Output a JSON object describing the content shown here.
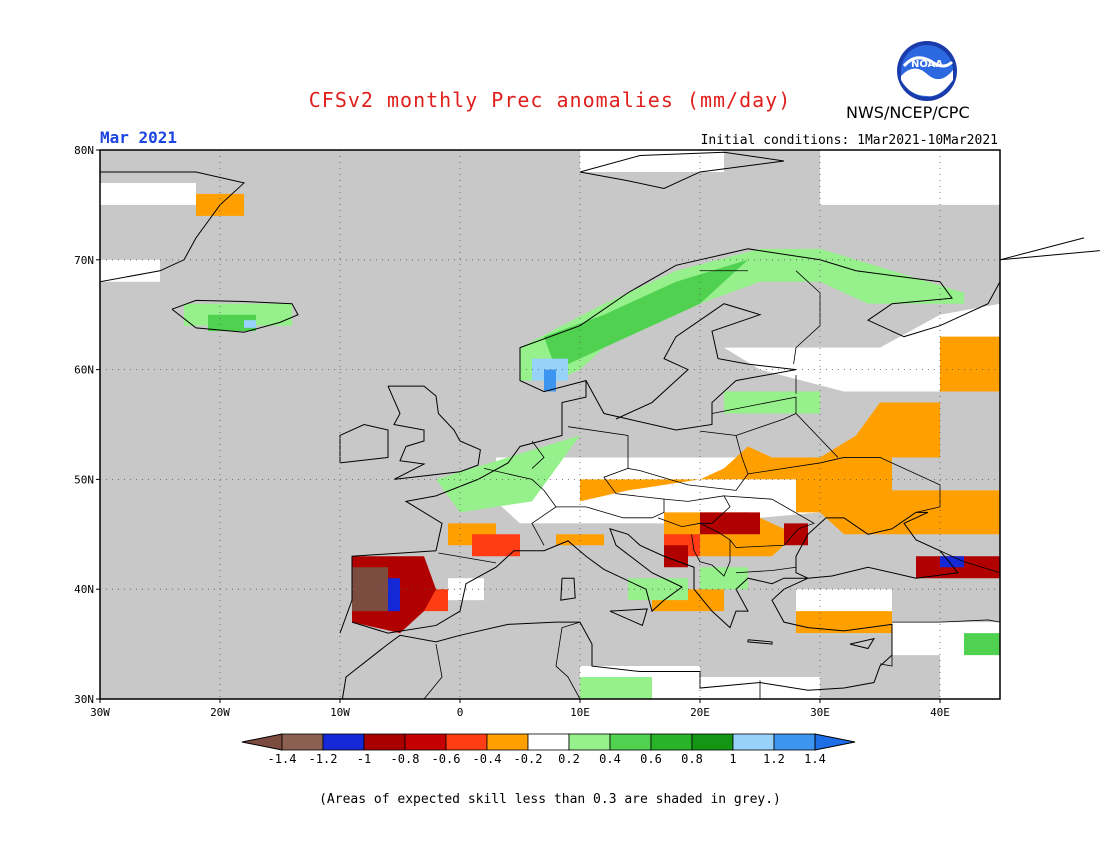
{
  "header": {
    "title": "CFSv2 monthly Prec anomalies (mm/day)",
    "month": "Mar 2021",
    "initial_conditions": "Initial conditions: 1Mar2021-10Mar2021",
    "org": "NWS/NCEP/CPC",
    "logo_text": "NOAA"
  },
  "map": {
    "region": "Europe",
    "lon_range": [
      -30,
      45
    ],
    "lat_range": [
      30,
      80
    ],
    "lat_labels": [
      "80N",
      "70N",
      "60N",
      "50N",
      "40N",
      "30N"
    ],
    "lon_labels": [
      "30W",
      "20W",
      "10W",
      "0",
      "10E",
      "20E",
      "30E",
      "40E"
    ],
    "background_color": "#c8c8c8",
    "grid": "dotted"
  },
  "legend": {
    "ticks": [
      "-1.4",
      "-1.2",
      "-1",
      "-0.8",
      "-0.6",
      "-0.4",
      "-0.2",
      "0.2",
      "0.4",
      "0.6",
      "0.8",
      "1",
      "1.2",
      "1.4"
    ],
    "colors": [
      "#7c4c40",
      "#8c6050",
      "#1428d8",
      "#a80000",
      "#c40000",
      "#ff3c14",
      "#ffa000",
      "#ffffff",
      "#96f08c",
      "#50d250",
      "#28b428",
      "#149614",
      "#96d2fa",
      "#3c96f0",
      "#1e6ee6"
    ]
  },
  "footnote": "(Areas of expected skill less than 0.3 are shaded in grey.)"
}
